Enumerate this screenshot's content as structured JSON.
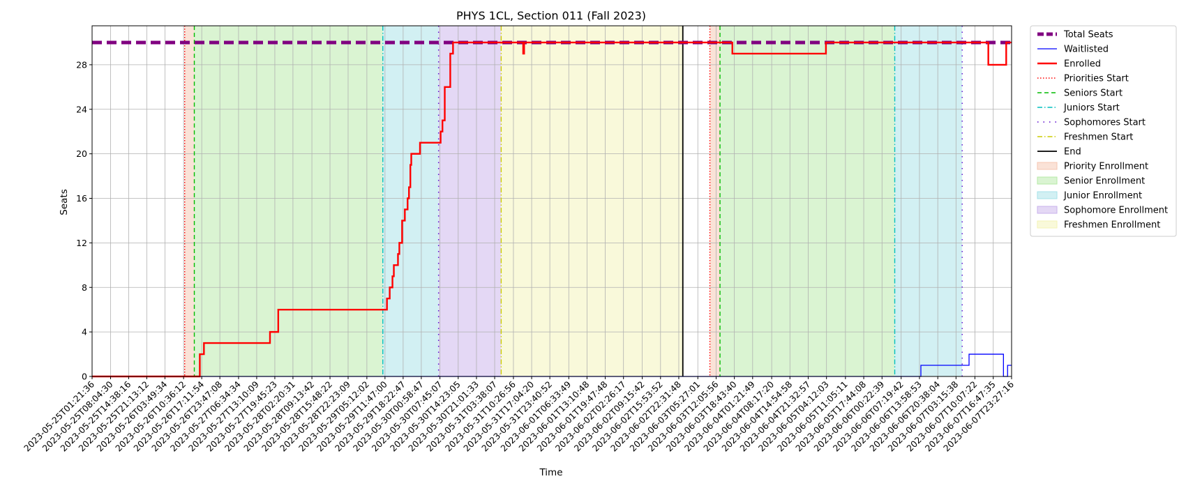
{
  "chart_data": {
    "type": "line",
    "title": "PHYS 1CL, Section 011 (Fall 2023)",
    "xlabel": "Time",
    "ylabel": "Seats",
    "ylim": [
      0,
      31.5
    ],
    "xlim": [
      "2023-05-25T01:21:36",
      "2023-06-07T23:27:16"
    ],
    "yticks": [
      0,
      4,
      8,
      12,
      16,
      20,
      24,
      28
    ],
    "xticks": [
      "2023-05-25T01:21:36",
      "2023-05-25T08:04:30",
      "2023-05-25T14:38:16",
      "2023-05-25T21:13:12",
      "2023-05-26T03:49:34",
      "2023-05-26T10:36:12",
      "2023-05-26T17:11:54",
      "2023-05-26T23:47:08",
      "2023-05-27T06:34:34",
      "2023-05-27T13:10:09",
      "2023-05-27T19:45:23",
      "2023-05-28T02:20:31",
      "2023-05-28T09:13:42",
      "2023-05-28T15:48:22",
      "2023-05-28T22:23:09",
      "2023-05-29T05:12:02",
      "2023-05-29T11:47:00",
      "2023-05-29T18:22:47",
      "2023-05-30T00:58:47",
      "2023-05-30T07:45:07",
      "2023-05-30T14:23:05",
      "2023-05-30T21:01:33",
      "2023-05-31T03:38:07",
      "2023-05-31T10:26:56",
      "2023-05-31T17:04:20",
      "2023-05-31T23:40:52",
      "2023-06-01T06:33:49",
      "2023-06-01T13:10:48",
      "2023-06-01T19:47:48",
      "2023-06-02T02:26:17",
      "2023-06-02T09:15:42",
      "2023-06-02T15:53:52",
      "2023-06-02T22:31:48",
      "2023-06-03T05:27:01",
      "2023-06-03T12:05:56",
      "2023-06-03T18:43:40",
      "2023-06-04T01:21:49",
      "2023-06-04T08:17:20",
      "2023-06-04T14:54:58",
      "2023-06-04T21:32:57",
      "2023-06-05T04:12:03",
      "2023-06-05T11:05:11",
      "2023-06-05T17:44:08",
      "2023-06-06T00:22:39",
      "2023-06-06T07:19:42",
      "2023-06-06T13:58:53",
      "2023-06-06T20:38:04",
      "2023-06-07T03:15:38",
      "2023-06-07T10:07:22",
      "2023-06-07T16:47:35",
      "2023-06-07T23:27:16"
    ],
    "grid": true,
    "legend_position": "outside right, top",
    "series": [
      {
        "name": "Total Seats",
        "style": "dashed",
        "color": "#800080",
        "points": [
          [
            "2023-05-25T01:21:36",
            30
          ],
          [
            "2023-06-07T23:27:16",
            30
          ]
        ]
      },
      {
        "name": "Waitlisted",
        "style": "solid",
        "color": "#0000ff",
        "points": [
          [
            "2023-05-25T01:21:36",
            0
          ],
          [
            "2023-06-06T14:30:00",
            0
          ],
          [
            "2023-06-06T14:30:00",
            1
          ],
          [
            "2023-06-07T08:00:00",
            1
          ],
          [
            "2023-06-07T08:00:00",
            2
          ],
          [
            "2023-06-07T20:30:00",
            2
          ],
          [
            "2023-06-07T20:30:00",
            0
          ],
          [
            "2023-06-07T22:00:00",
            0
          ],
          [
            "2023-06-07T22:00:00",
            1
          ],
          [
            "2023-06-07T23:27:16",
            1
          ]
        ]
      },
      {
        "name": "Enrolled",
        "style": "solid",
        "color": "#ff0000",
        "points": [
          [
            "2023-05-25T01:21:36",
            0
          ],
          [
            "2023-05-26T16:30:00",
            0
          ],
          [
            "2023-05-26T16:30:00",
            2
          ],
          [
            "2023-05-26T18:00:00",
            2
          ],
          [
            "2023-05-26T18:00:00",
            3
          ],
          [
            "2023-05-27T18:00:00",
            3
          ],
          [
            "2023-05-27T18:00:00",
            4
          ],
          [
            "2023-05-27T21:00:00",
            4
          ],
          [
            "2023-05-27T21:00:00",
            6
          ],
          [
            "2023-05-29T12:30:00",
            6
          ],
          [
            "2023-05-29T12:30:00",
            7
          ],
          [
            "2023-05-29T13:30:00",
            7
          ],
          [
            "2023-05-29T13:30:00",
            8
          ],
          [
            "2023-05-29T14:30:00",
            8
          ],
          [
            "2023-05-29T14:30:00",
            9
          ],
          [
            "2023-05-29T15:00:00",
            9
          ],
          [
            "2023-05-29T15:00:00",
            10
          ],
          [
            "2023-05-29T16:30:00",
            10
          ],
          [
            "2023-05-29T16:30:00",
            11
          ],
          [
            "2023-05-29T17:00:00",
            11
          ],
          [
            "2023-05-29T17:00:00",
            12
          ],
          [
            "2023-05-29T18:00:00",
            12
          ],
          [
            "2023-05-29T18:00:00",
            14
          ],
          [
            "2023-05-29T19:00:00",
            14
          ],
          [
            "2023-05-29T19:00:00",
            15
          ],
          [
            "2023-05-29T20:00:00",
            15
          ],
          [
            "2023-05-29T20:00:00",
            16
          ],
          [
            "2023-05-29T20:30:00",
            16
          ],
          [
            "2023-05-29T20:30:00",
            17
          ],
          [
            "2023-05-29T21:00:00",
            17
          ],
          [
            "2023-05-29T21:00:00",
            19
          ],
          [
            "2023-05-29T21:20:00",
            19
          ],
          [
            "2023-05-29T21:20:00",
            20
          ],
          [
            "2023-05-30T00:30:00",
            20
          ],
          [
            "2023-05-30T00:30:00",
            21
          ],
          [
            "2023-05-30T08:00:00",
            21
          ],
          [
            "2023-05-30T08:00:00",
            22
          ],
          [
            "2023-05-30T08:40:00",
            22
          ],
          [
            "2023-05-30T08:40:00",
            23
          ],
          [
            "2023-05-30T09:30:00",
            23
          ],
          [
            "2023-05-30T09:30:00",
            26
          ],
          [
            "2023-05-30T11:30:00",
            26
          ],
          [
            "2023-05-30T11:30:00",
            29
          ],
          [
            "2023-05-30T12:30:00",
            29
          ],
          [
            "2023-05-30T12:30:00",
            30
          ],
          [
            "2023-05-31T14:00:00",
            30
          ],
          [
            "2023-05-31T14:00:00",
            29
          ],
          [
            "2023-05-31T14:20:00",
            29
          ],
          [
            "2023-05-31T14:20:00",
            30
          ],
          [
            "2023-06-03T18:00:00",
            30
          ],
          [
            "2023-06-03T18:00:00",
            29
          ],
          [
            "2023-06-05T04:00:00",
            29
          ],
          [
            "2023-06-05T04:00:00",
            30
          ],
          [
            "2023-06-07T15:00:00",
            30
          ],
          [
            "2023-06-07T15:00:00",
            28
          ],
          [
            "2023-06-07T21:30:00",
            28
          ],
          [
            "2023-06-07T21:30:00",
            30
          ],
          [
            "2023-06-07T23:27:16",
            30
          ]
        ]
      }
    ],
    "phase_markers": [
      {
        "name": "Priorities Start",
        "color": "#ff0000",
        "style": "dotted",
        "times": [
          "2023-05-26T11:00:00",
          "2023-06-03T09:50:00"
        ]
      },
      {
        "name": "Seniors Start",
        "color": "#00bb00",
        "style": "dashed",
        "times": [
          "2023-05-26T14:30:00",
          "2023-06-03T13:30:00"
        ]
      },
      {
        "name": "Juniors Start",
        "color": "#00bfbf",
        "style": "dashdot",
        "times": [
          "2023-05-29T11:00:00",
          "2023-06-06T05:00:00"
        ]
      },
      {
        "name": "Sophomores Start",
        "color": "#5500cc",
        "style": "loosedot",
        "times": [
          "2023-05-30T07:15:00",
          "2023-06-07T05:30:00"
        ]
      },
      {
        "name": "Freshmen Start",
        "color": "#cccc00",
        "style": "dashdot",
        "times": [
          "2023-05-31T06:00:00"
        ]
      },
      {
        "name": "End",
        "color": "#000000",
        "style": "solid",
        "times": [
          "2023-06-03T00:00:00"
        ]
      }
    ],
    "phase_spans": [
      {
        "name": "Priority Enrollment",
        "color": "#f5c5b0",
        "ranges": [
          [
            "2023-05-26T11:00:00",
            "2023-05-26T14:30:00"
          ],
          [
            "2023-06-03T09:50:00",
            "2023-06-03T13:30:00"
          ]
        ]
      },
      {
        "name": "Senior Enrollment",
        "color": "#b5eaa5",
        "ranges": [
          [
            "2023-05-26T14:30:00",
            "2023-05-29T11:00:00"
          ],
          [
            "2023-06-03T13:30:00",
            "2023-06-06T05:00:00"
          ]
        ]
      },
      {
        "name": "Junior Enrollment",
        "color": "#a5e2e8",
        "ranges": [
          [
            "2023-05-29T11:00:00",
            "2023-05-30T07:15:00"
          ],
          [
            "2023-06-06T05:00:00",
            "2023-06-07T05:30:00"
          ]
        ]
      },
      {
        "name": "Sophomore Enrollment",
        "color": "#c9b2ec",
        "ranges": [
          [
            "2023-05-30T07:15:00",
            "2023-05-31T06:00:00"
          ]
        ]
      },
      {
        "name": "Freshmen Enrollment",
        "color": "#f3f3b5",
        "ranges": [
          [
            "2023-05-31T06:00:00",
            "2023-06-03T00:00:00"
          ]
        ]
      }
    ]
  }
}
